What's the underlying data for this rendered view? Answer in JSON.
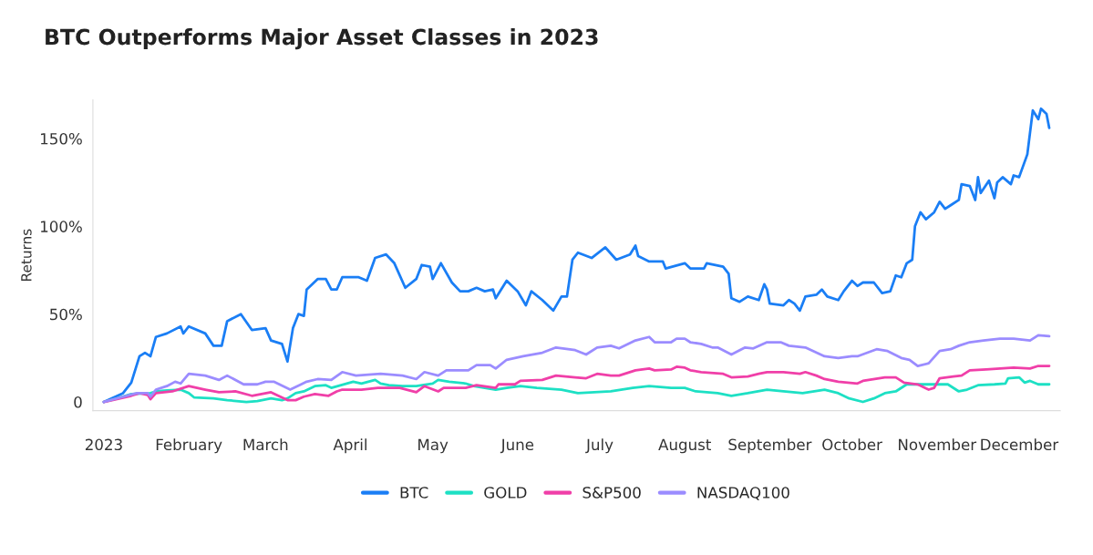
{
  "chart_data": {
    "type": "line",
    "title": "BTC Outperforms Major Asset Classes in 2023",
    "ylabel": "Returns",
    "xlim": [
      "2022-12-28",
      "2023-12-16"
    ],
    "xticks": [
      {
        "value": "2023-01-01",
        "label": "2023"
      },
      {
        "value": "2023-02-01",
        "label": "February"
      },
      {
        "value": "2023-03-01",
        "label": "March"
      },
      {
        "value": "2023-04-01",
        "label": "April"
      },
      {
        "value": "2023-05-01",
        "label": "May"
      },
      {
        "value": "2023-06-01",
        "label": "June"
      },
      {
        "value": "2023-07-01",
        "label": "July"
      },
      {
        "value": "2023-08-01",
        "label": "August"
      },
      {
        "value": "2023-09-01",
        "label": "September"
      },
      {
        "value": "2023-10-01",
        "label": "October"
      },
      {
        "value": "2023-11-01",
        "label": "November"
      },
      {
        "value": "2023-12-01",
        "label": "December"
      }
    ],
    "ylim": [
      -5,
      172
    ],
    "yticks": [
      0,
      {
        "value": 50,
        "label": "50%"
      },
      {
        "value": 100,
        "label": "100%"
      },
      {
        "value": 150,
        "label": "150%"
      }
    ],
    "grid": false,
    "legend": "bottom",
    "marker": "none",
    "line_style": "solid",
    "series": [
      {
        "name": "BTC",
        "color": "#1a7ef5",
        "x": [
          "2023-01-01",
          "2023-01-08",
          "2023-01-11",
          "2023-01-14",
          "2023-01-16",
          "2023-01-18",
          "2023-01-20",
          "2023-01-24",
          "2023-01-29",
          "2023-01-30",
          "2023-02-01",
          "2023-02-07",
          "2023-02-10",
          "2023-02-13",
          "2023-02-15",
          "2023-02-20",
          "2023-02-24",
          "2023-03-01",
          "2023-03-03",
          "2023-03-07",
          "2023-03-09",
          "2023-03-11",
          "2023-03-13",
          "2023-03-15",
          "2023-03-16",
          "2023-03-20",
          "2023-03-23",
          "2023-03-25",
          "2023-03-27",
          "2023-03-29",
          "2023-04-04",
          "2023-04-07",
          "2023-04-10",
          "2023-04-14",
          "2023-04-17",
          "2023-04-21",
          "2023-04-25",
          "2023-04-27",
          "2023-04-30",
          "2023-05-01",
          "2023-05-04",
          "2023-05-08",
          "2023-05-11",
          "2023-05-14",
          "2023-05-17",
          "2023-05-20",
          "2023-05-23",
          "2023-05-24",
          "2023-05-28",
          "2023-06-01",
          "2023-06-04",
          "2023-06-06",
          "2023-06-10",
          "2023-06-14",
          "2023-06-17",
          "2023-06-19",
          "2023-06-21",
          "2023-06-23",
          "2023-06-28",
          "2023-07-03",
          "2023-07-07",
          "2023-07-12",
          "2023-07-14",
          "2023-07-15",
          "2023-07-19",
          "2023-07-24",
          "2023-07-25",
          "2023-08-01",
          "2023-08-03",
          "2023-08-08",
          "2023-08-09",
          "2023-08-15",
          "2023-08-17",
          "2023-08-18",
          "2023-08-21",
          "2023-08-24",
          "2023-08-28",
          "2023-08-30",
          "2023-08-31",
          "2023-09-01",
          "2023-09-06",
          "2023-09-08",
          "2023-09-10",
          "2023-09-12",
          "2023-09-14",
          "2023-09-18",
          "2023-09-20",
          "2023-09-22",
          "2023-09-26",
          "2023-09-28",
          "2023-10-01",
          "2023-10-03",
          "2023-10-05",
          "2023-10-09",
          "2023-10-12",
          "2023-10-15",
          "2023-10-17",
          "2023-10-19",
          "2023-10-21",
          "2023-10-23",
          "2023-10-24",
          "2023-10-26",
          "2023-10-28",
          "2023-10-31",
          "2023-11-02",
          "2023-11-04",
          "2023-11-06",
          "2023-11-09",
          "2023-11-10",
          "2023-11-13",
          "2023-11-15",
          "2023-11-16",
          "2023-11-17",
          "2023-11-20",
          "2023-11-22",
          "2023-11-23",
          "2023-11-25",
          "2023-11-28",
          "2023-11-29",
          "2023-12-01",
          "2023-12-04",
          "2023-12-06",
          "2023-12-08",
          "2023-12-09",
          "2023-12-11",
          "2023-12-12"
        ],
        "values": [
          0,
          5,
          11,
          26,
          28,
          26,
          37,
          39,
          43,
          39,
          43,
          39,
          32,
          32,
          46,
          50,
          41,
          42,
          35,
          33,
          23,
          42,
          50,
          49,
          64,
          70,
          70,
          64,
          64,
          71,
          71,
          69,
          82,
          84,
          79,
          65,
          70,
          78,
          77,
          70,
          79,
          68,
          63,
          63,
          65,
          63,
          64,
          59,
          69,
          63,
          55,
          63,
          58,
          52,
          60,
          60,
          81,
          85,
          82,
          88,
          81,
          84,
          89,
          83,
          80,
          80,
          76,
          79,
          76,
          76,
          79,
          77,
          73,
          59,
          57,
          60,
          58,
          67,
          64,
          56,
          55,
          58,
          56,
          52,
          60,
          61,
          64,
          60,
          58,
          63,
          69,
          66,
          68,
          68,
          62,
          63,
          72,
          71,
          79,
          81,
          100,
          108,
          104,
          108,
          114,
          110,
          112,
          115,
          124,
          123,
          115,
          128,
          119,
          126,
          116,
          125,
          128,
          124,
          129,
          128,
          141,
          166,
          161,
          167,
          164,
          156
        ]
      },
      {
        "name": "GOLD",
        "color": "#1de0c4",
        "x": [
          "2023-01-01",
          "2023-01-06",
          "2023-01-11",
          "2023-01-18",
          "2023-01-20",
          "2023-01-24",
          "2023-01-29",
          "2023-02-01",
          "2023-02-03",
          "2023-02-10",
          "2023-02-15",
          "2023-02-22",
          "2023-02-26",
          "2023-03-03",
          "2023-03-07",
          "2023-03-09",
          "2023-03-12",
          "2023-03-15",
          "2023-03-19",
          "2023-03-23",
          "2023-03-25",
          "2023-04-02",
          "2023-04-05",
          "2023-04-10",
          "2023-04-12",
          "2023-04-15",
          "2023-04-20",
          "2023-04-25",
          "2023-05-01",
          "2023-05-03",
          "2023-05-07",
          "2023-05-13",
          "2023-05-16",
          "2023-05-20",
          "2023-05-24",
          "2023-05-28",
          "2023-06-02",
          "2023-06-08",
          "2023-06-17",
          "2023-06-23",
          "2023-07-05",
          "2023-07-13",
          "2023-07-19",
          "2023-07-27",
          "2023-08-01",
          "2023-08-05",
          "2023-08-13",
          "2023-08-18",
          "2023-08-24",
          "2023-08-31",
          "2023-09-06",
          "2023-09-13",
          "2023-09-21",
          "2023-09-26",
          "2023-09-30",
          "2023-10-05",
          "2023-10-09",
          "2023-10-13",
          "2023-10-17",
          "2023-10-21",
          "2023-10-26",
          "2023-11-01",
          "2023-11-05",
          "2023-11-09",
          "2023-11-12",
          "2023-11-16",
          "2023-11-22",
          "2023-11-26",
          "2023-11-27",
          "2023-12-01",
          "2023-12-03",
          "2023-12-05",
          "2023-12-08",
          "2023-12-12"
        ],
        "values": [
          0,
          2,
          4.5,
          5,
          6,
          6.5,
          7,
          5,
          2.5,
          2,
          1,
          0,
          0.5,
          2,
          1,
          2,
          5,
          6,
          9,
          9.5,
          8,
          11.5,
          10.5,
          12.5,
          10.5,
          9.5,
          9,
          9,
          10.5,
          12.5,
          11.5,
          10.5,
          9,
          8,
          7,
          8,
          9,
          8,
          7,
          5,
          6,
          8,
          9,
          8,
          8,
          6,
          5,
          3.5,
          5,
          7,
          6,
          5,
          7,
          5,
          2,
          0,
          2,
          5,
          6,
          10,
          10,
          10,
          10,
          6,
          7,
          9.5,
          10,
          10.5,
          13.5,
          14,
          11,
          12,
          10,
          10
        ]
      },
      {
        "name": "S&P500",
        "color": "#f03fa8",
        "x": [
          "2023-01-01",
          "2023-01-11",
          "2023-01-14",
          "2023-01-17",
          "2023-01-18",
          "2023-01-20",
          "2023-01-26",
          "2023-02-01",
          "2023-02-07",
          "2023-02-12",
          "2023-02-18",
          "2023-02-24",
          "2023-03-03",
          "2023-03-09",
          "2023-03-12",
          "2023-03-15",
          "2023-03-19",
          "2023-03-24",
          "2023-03-27",
          "2023-03-29",
          "2023-04-05",
          "2023-04-11",
          "2023-04-19",
          "2023-04-25",
          "2023-04-28",
          "2023-05-03",
          "2023-05-05",
          "2023-05-13",
          "2023-05-17",
          "2023-05-24",
          "2023-05-25",
          "2023-05-31",
          "2023-06-02",
          "2023-06-10",
          "2023-06-15",
          "2023-06-22",
          "2023-06-26",
          "2023-06-30",
          "2023-07-05",
          "2023-07-08",
          "2023-07-14",
          "2023-07-19",
          "2023-07-21",
          "2023-07-27",
          "2023-07-29",
          "2023-08-01",
          "2023-08-03",
          "2023-08-07",
          "2023-08-15",
          "2023-08-18",
          "2023-08-24",
          "2023-08-28",
          "2023-08-31",
          "2023-09-06",
          "2023-09-12",
          "2023-09-14",
          "2023-09-18",
          "2023-09-21",
          "2023-09-26",
          "2023-10-03",
          "2023-10-05",
          "2023-10-13",
          "2023-10-17",
          "2023-10-20",
          "2023-10-25",
          "2023-10-29",
          "2023-10-31",
          "2023-11-02",
          "2023-11-07",
          "2023-11-10",
          "2023-11-13",
          "2023-11-19",
          "2023-11-29",
          "2023-12-05",
          "2023-12-08",
          "2023-12-12"
        ],
        "values": [
          0,
          3.5,
          5,
          4,
          1.5,
          5,
          6,
          9,
          7,
          5.5,
          6,
          3.5,
          5.5,
          1,
          1,
          3,
          4.5,
          3.5,
          6,
          7,
          7,
          8,
          8,
          5.5,
          9,
          6,
          8,
          8,
          9.5,
          8,
          10,
          10,
          12,
          12.5,
          15,
          14,
          13.5,
          16,
          15,
          15,
          18,
          19,
          18,
          18.5,
          20,
          19.5,
          18,
          17,
          16,
          14,
          14.5,
          16,
          17,
          17,
          16,
          17,
          15,
          13,
          11.5,
          10.5,
          12,
          14,
          14,
          11,
          10,
          7,
          8,
          13.5,
          14.5,
          15,
          18,
          18.5,
          19.5,
          19,
          20.5,
          20.5
        ]
      },
      {
        "name": "NASDAQ100",
        "color": "#9b8cff",
        "x": [
          "2023-01-01",
          "2023-01-13",
          "2023-01-17",
          "2023-01-18",
          "2023-01-20",
          "2023-01-24",
          "2023-01-27",
          "2023-01-29",
          "2023-02-01",
          "2023-02-07",
          "2023-02-12",
          "2023-02-15",
          "2023-02-21",
          "2023-02-26",
          "2023-03-01",
          "2023-03-04",
          "2023-03-10",
          "2023-03-14",
          "2023-03-16",
          "2023-03-20",
          "2023-03-25",
          "2023-03-29",
          "2023-04-03",
          "2023-04-12",
          "2023-04-20",
          "2023-04-25",
          "2023-04-28",
          "2023-05-03",
          "2023-05-06",
          "2023-05-14",
          "2023-05-17",
          "2023-05-22",
          "2023-05-24",
          "2023-05-28",
          "2023-06-03",
          "2023-06-10",
          "2023-06-15",
          "2023-06-22",
          "2023-06-26",
          "2023-06-30",
          "2023-07-05",
          "2023-07-08",
          "2023-07-14",
          "2023-07-19",
          "2023-07-21",
          "2023-07-27",
          "2023-07-29",
          "2023-08-01",
          "2023-08-03",
          "2023-08-07",
          "2023-08-11",
          "2023-08-13",
          "2023-08-18",
          "2023-08-23",
          "2023-08-26",
          "2023-08-31",
          "2023-09-05",
          "2023-09-08",
          "2023-09-14",
          "2023-09-21",
          "2023-09-26",
          "2023-10-01",
          "2023-10-03",
          "2023-10-10",
          "2023-10-14",
          "2023-10-19",
          "2023-10-22",
          "2023-10-25",
          "2023-10-29",
          "2023-11-02",
          "2023-11-06",
          "2023-11-09",
          "2023-11-13",
          "2023-11-18",
          "2023-11-24",
          "2023-11-29",
          "2023-12-05",
          "2023-12-08",
          "2023-12-12"
        ],
        "values": [
          0,
          5,
          5,
          3,
          7,
          9,
          11.5,
          10.5,
          16,
          15,
          12.5,
          15,
          10,
          10,
          11.5,
          11.5,
          7,
          10,
          11.5,
          13,
          12.5,
          17,
          15,
          16,
          15,
          13,
          17,
          15,
          18,
          18,
          21,
          21,
          19,
          24,
          26,
          28,
          31,
          29.5,
          27,
          31,
          32,
          30.5,
          35,
          37,
          34,
          34,
          36,
          36,
          34,
          33,
          31,
          31,
          27,
          31,
          30.5,
          34,
          34,
          32,
          31,
          26,
          25,
          26,
          26,
          30,
          29,
          25,
          24,
          20.5,
          22,
          29,
          30,
          32,
          34,
          35,
          36,
          36,
          35,
          38,
          37.5
        ]
      }
    ]
  }
}
